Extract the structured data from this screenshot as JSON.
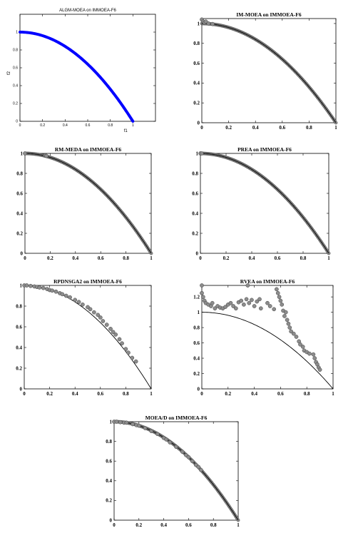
{
  "figure": {
    "background": "#ffffff",
    "front_color": "#000000",
    "marker_fill": "#8c8c8c",
    "marker_stroke": "#404040"
  },
  "chart_data": [
    {
      "type": "scatter",
      "title": "ALGM-MOEA on IMMOEA-F6",
      "xlabel": "f1",
      "ylabel": "f2",
      "xlim": [
        0,
        1.2
      ],
      "ylim": [
        0,
        1.2
      ],
      "xticks": [
        "0",
        "0.2",
        "0.4",
        "0.6",
        "0.8",
        "1"
      ],
      "yticks": [
        "0",
        "0.2",
        "0.4",
        "0.6",
        "0.8",
        "1"
      ],
      "marker": "blue-dense-line",
      "series_color": "#0000ff",
      "front": "f2 = 1 - f1^2, f1 in [0,1]",
      "points": "dense uniform coverage of front"
    },
    {
      "type": "scatter",
      "title": "IM-MOEA on IMMOEA-F6",
      "xlabel": "",
      "ylabel": "",
      "xlim": [
        0,
        1
      ],
      "ylim": [
        0,
        1.05
      ],
      "xticks": [
        "0",
        "0.2",
        "0.4",
        "0.6",
        "0.8",
        "1"
      ],
      "yticks": [
        "0",
        "0.2",
        "0.4",
        "0.6",
        "0.8",
        "1"
      ],
      "marker": "gray-circles-dense",
      "points": [
        [
          0.0,
          1.04
        ],
        [
          0.01,
          1.02
        ],
        [
          0.02,
          1.01
        ],
        [
          0.03,
          1.02
        ],
        [
          0.05,
          1.0
        ],
        [
          0.08,
          0.995
        ]
      ]
    },
    {
      "type": "scatter",
      "title": "RM-MEDA on IMMOEA-F6",
      "xlabel": "",
      "ylabel": "",
      "xlim": [
        0,
        1
      ],
      "ylim": [
        0,
        1
      ],
      "xticks": [
        "0",
        "0.2",
        "0.4",
        "0.6",
        "0.8",
        "1"
      ],
      "yticks": [
        "0",
        "0.2",
        "0.4",
        "0.6",
        "0.8",
        "1"
      ],
      "marker": "gray-circles-dense",
      "points": [
        [
          0.0,
          1.0
        ],
        [
          0.16,
          0.98
        ],
        [
          0.17,
          0.975
        ]
      ]
    },
    {
      "type": "scatter",
      "title": "PREA on IMMOEA-F6",
      "xlabel": "",
      "ylabel": "",
      "xlim": [
        0,
        1
      ],
      "ylim": [
        0,
        1
      ],
      "xticks": [
        "0",
        "0.2",
        "0.4",
        "0.6",
        "0.8",
        "1"
      ],
      "yticks": [
        "0",
        "0.2",
        "0.4",
        "0.6",
        "0.8",
        "1"
      ],
      "marker": "gray-circles-dense",
      "points": [
        [
          0.0,
          1.0
        ],
        [
          0.01,
          1.0
        ]
      ]
    },
    {
      "type": "scatter",
      "title": "RPDNSGA2 on IMMOEA-F6",
      "xlabel": "",
      "ylabel": "",
      "xlim": [
        0,
        1
      ],
      "ylim": [
        0,
        1
      ],
      "xticks": [
        "0",
        "0.2",
        "0.4",
        "0.6",
        "0.8",
        "1"
      ],
      "yticks": [
        "0",
        "0.2",
        "0.4",
        "0.6",
        "0.8",
        "1"
      ],
      "marker": "gray-circles",
      "points": [
        [
          0.0,
          1.0
        ],
        [
          0.02,
          1.0
        ],
        [
          0.05,
          0.995
        ],
        [
          0.08,
          0.99
        ],
        [
          0.1,
          0.985
        ],
        [
          0.12,
          0.98
        ],
        [
          0.15,
          0.975
        ],
        [
          0.18,
          0.965
        ],
        [
          0.2,
          0.955
        ],
        [
          0.22,
          0.95
        ],
        [
          0.25,
          0.94
        ],
        [
          0.28,
          0.925
        ],
        [
          0.3,
          0.915
        ],
        [
          0.33,
          0.9
        ],
        [
          0.36,
          0.885
        ],
        [
          0.4,
          0.86
        ],
        [
          0.43,
          0.84
        ],
        [
          0.46,
          0.815
        ],
        [
          0.5,
          0.79
        ],
        [
          0.52,
          0.77
        ],
        [
          0.55,
          0.74
        ],
        [
          0.58,
          0.715
        ],
        [
          0.6,
          0.69
        ],
        [
          0.62,
          0.655
        ],
        [
          0.65,
          0.62
        ],
        [
          0.68,
          0.58
        ],
        [
          0.7,
          0.55
        ],
        [
          0.72,
          0.525
        ],
        [
          0.75,
          0.48
        ],
        [
          0.77,
          0.44
        ],
        [
          0.8,
          0.385
        ],
        [
          0.82,
          0.35
        ],
        [
          0.85,
          0.3
        ],
        [
          0.88,
          0.265
        ]
      ]
    },
    {
      "type": "scatter",
      "title": "RVEA on IMMOEA-F6",
      "xlabel": "",
      "ylabel": "",
      "xlim": [
        0,
        1
      ],
      "ylim": [
        0,
        1.35
      ],
      "xticks": [
        "0",
        "0.2",
        "0.4",
        "0.6",
        "0.8",
        "1"
      ],
      "yticks": [
        "0",
        "0.2",
        "0.4",
        "0.6",
        "0.8",
        "1",
        "1.2"
      ],
      "marker": "gray-circles",
      "points": [
        [
          0.0,
          1.35
        ],
        [
          0.0,
          1.25
        ],
        [
          0.01,
          1.2
        ],
        [
          0.02,
          1.15
        ],
        [
          0.03,
          1.12
        ],
        [
          0.05,
          1.1
        ],
        [
          0.07,
          1.08
        ],
        [
          0.08,
          1.12
        ],
        [
          0.1,
          1.05
        ],
        [
          0.12,
          1.08
        ],
        [
          0.14,
          1.06
        ],
        [
          0.16,
          1.05
        ],
        [
          0.18,
          1.07
        ],
        [
          0.2,
          1.1
        ],
        [
          0.22,
          1.12
        ],
        [
          0.24,
          1.08
        ],
        [
          0.26,
          1.05
        ],
        [
          0.28,
          1.13
        ],
        [
          0.3,
          1.15
        ],
        [
          0.32,
          1.1
        ],
        [
          0.34,
          1.17
        ],
        [
          0.35,
          1.35
        ],
        [
          0.36,
          1.12
        ],
        [
          0.38,
          1.16
        ],
        [
          0.4,
          1.08
        ],
        [
          0.42,
          1.14
        ],
        [
          0.44,
          1.17
        ],
        [
          0.45,
          1.05
        ],
        [
          0.5,
          1.12
        ],
        [
          0.52,
          1.08
        ],
        [
          0.55,
          1.04
        ],
        [
          0.57,
          1.3
        ],
        [
          0.58,
          1.25
        ],
        [
          0.59,
          1.2
        ],
        [
          0.6,
          1.15
        ],
        [
          0.61,
          1.1
        ],
        [
          0.62,
          1.02
        ],
        [
          0.63,
          0.95
        ],
        [
          0.64,
          1.0
        ],
        [
          0.65,
          0.9
        ],
        [
          0.66,
          0.85
        ],
        [
          0.67,
          0.8
        ],
        [
          0.68,
          0.75
        ],
        [
          0.7,
          0.72
        ],
        [
          0.72,
          0.68
        ],
        [
          0.74,
          0.62
        ],
        [
          0.75,
          0.58
        ],
        [
          0.77,
          0.55
        ],
        [
          0.78,
          0.5
        ],
        [
          0.8,
          0.48
        ],
        [
          0.82,
          0.46
        ],
        [
          0.85,
          0.45
        ],
        [
          0.86,
          0.4
        ],
        [
          0.87,
          0.35
        ],
        [
          0.88,
          0.32
        ],
        [
          0.89,
          0.28
        ],
        [
          0.9,
          0.25
        ]
      ]
    },
    {
      "type": "scatter",
      "title": "MOEA/D on IMMOEA-F6",
      "xlabel": "",
      "ylabel": "",
      "xlim": [
        0,
        1
      ],
      "ylim": [
        0,
        1
      ],
      "xticks": [
        "0",
        "0.2",
        "0.4",
        "0.6",
        "0.8",
        "1"
      ],
      "yticks": [
        "0",
        "0.2",
        "0.4",
        "0.6",
        "0.8",
        "1"
      ],
      "marker": "gray-circles-dense",
      "points": [
        [
          0.0,
          1.0
        ],
        [
          0.02,
          1.0
        ],
        [
          0.05,
          0.995
        ],
        [
          0.08,
          0.99
        ],
        [
          0.1,
          0.99
        ],
        [
          0.15,
          0.975
        ],
        [
          0.18,
          0.965
        ],
        [
          0.2,
          0.96
        ],
        [
          0.25,
          0.935
        ],
        [
          0.3,
          0.905
        ],
        [
          0.35,
          0.875
        ],
        [
          0.4,
          0.835
        ],
        [
          0.42,
          0.82
        ],
        [
          0.45,
          0.79
        ],
        [
          0.5,
          0.745
        ],
        [
          0.55,
          0.695
        ],
        [
          0.58,
          0.66
        ],
        [
          0.6,
          0.64
        ],
        [
          0.63,
          0.6
        ],
        [
          0.66,
          0.56
        ],
        [
          0.68,
          0.54
        ],
        [
          0.7,
          0.51
        ]
      ]
    }
  ]
}
